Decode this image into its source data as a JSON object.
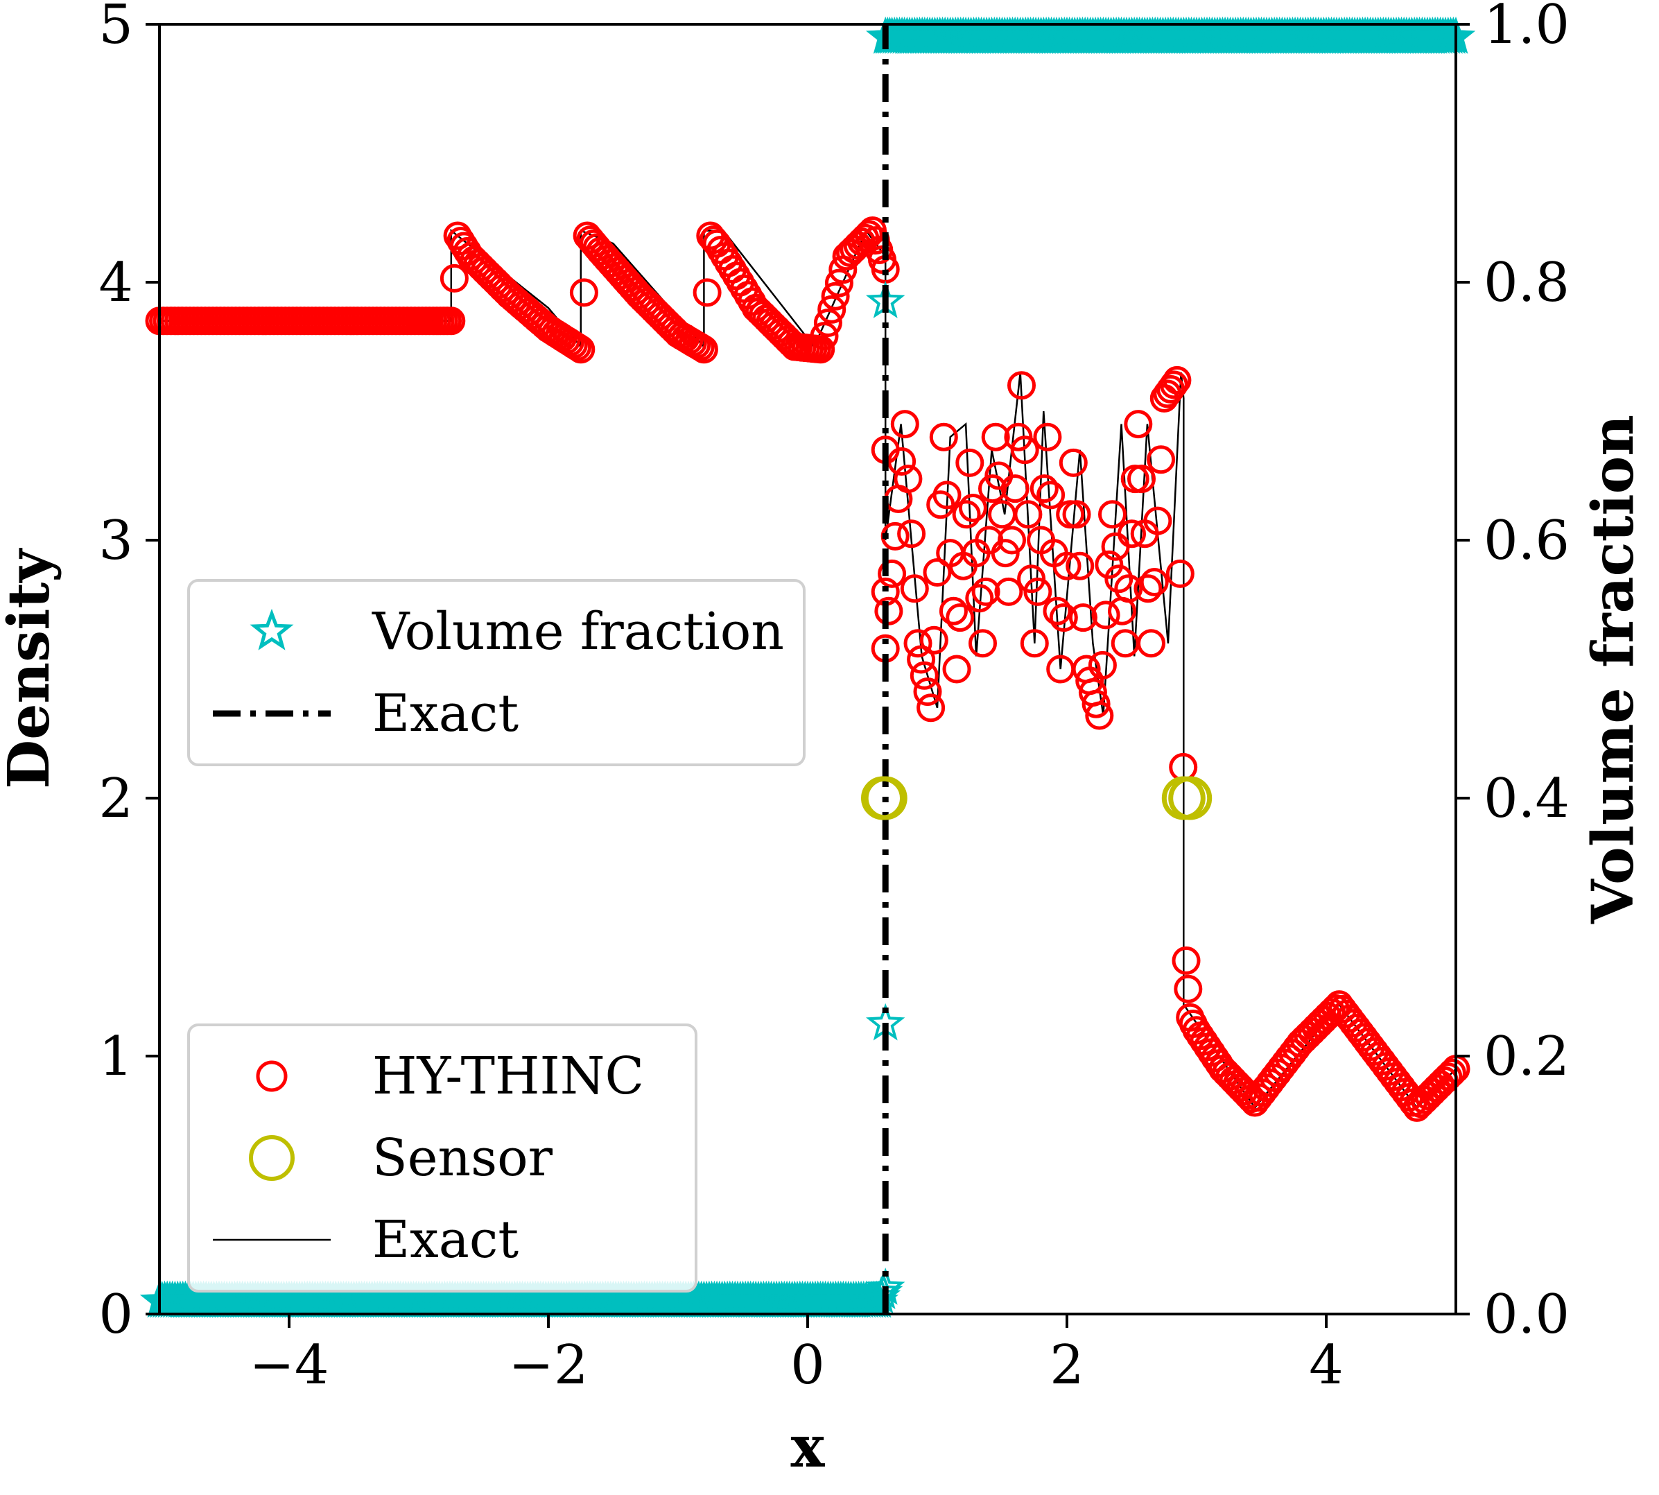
{
  "chart_data": {
    "type": "line",
    "title": "",
    "xlabel": "x",
    "ylabel": "Density",
    "y2label": "Volume fraction",
    "xlim": [
      -5,
      5
    ],
    "ylim": [
      0,
      5
    ],
    "y2lim": [
      0,
      1
    ],
    "x_ticks": [
      -4,
      -2,
      0,
      2,
      4
    ],
    "x_tick_labels": [
      "−4",
      "−2",
      "0",
      "2",
      "4"
    ],
    "y_ticks": [
      0,
      1,
      2,
      3,
      4,
      5
    ],
    "y_tick_labels": [
      "0",
      "1",
      "2",
      "3",
      "4",
      "5"
    ],
    "y2_ticks": [
      0,
      0.2,
      0.4,
      0.6,
      0.8,
      1.0
    ],
    "y2_tick_labels": [
      "0.0",
      "0.2",
      "0.4",
      "0.6",
      "0.8",
      "1.0"
    ],
    "grid": false,
    "colors": {
      "hy_thinc": "#ff0000",
      "sensor": "#bfbf00",
      "volume_fraction": "#00bfbf",
      "exact": "#000000"
    },
    "series": [
      {
        "name": "HY-THINC",
        "marker": "open-circle",
        "axis": "left",
        "x": [
          -5.0,
          -4.0,
          -3.0,
          -2.75,
          -2.7,
          -2.6,
          -2.3,
          -2.0,
          -1.75,
          -1.7,
          -1.6,
          -1.3,
          -1.0,
          -0.8,
          -0.75,
          -0.7,
          -0.4,
          -0.1,
          0.1,
          0.3,
          0.5,
          0.6,
          0.6,
          0.6,
          0.6,
          0.75,
          0.85,
          0.95,
          1.05,
          1.15,
          1.25,
          1.35,
          1.45,
          1.55,
          1.65,
          1.75,
          1.85,
          1.95,
          2.05,
          2.15,
          2.25,
          2.35,
          2.45,
          2.55,
          2.65,
          2.75,
          2.85,
          2.92,
          2.95,
          3.0,
          3.2,
          3.45,
          3.8,
          4.1,
          4.4,
          4.7,
          5.0
        ],
        "y": [
          3.85,
          3.85,
          3.85,
          3.85,
          4.18,
          4.1,
          3.95,
          3.82,
          3.74,
          4.18,
          4.12,
          3.95,
          3.8,
          3.74,
          4.18,
          4.15,
          3.9,
          3.75,
          3.74,
          4.1,
          4.2,
          4.05,
          3.35,
          2.8,
          2.58,
          3.45,
          2.6,
          2.35,
          3.4,
          2.5,
          3.3,
          2.6,
          3.4,
          2.8,
          3.6,
          2.6,
          3.4,
          2.5,
          3.3,
          2.5,
          2.32,
          3.1,
          2.6,
          3.45,
          2.6,
          3.55,
          3.62,
          1.37,
          1.15,
          1.1,
          0.95,
          0.82,
          1.05,
          1.2,
          1.0,
          0.8,
          0.95
        ]
      },
      {
        "name": "Sensor",
        "marker": "open-circle-large",
        "axis": "left",
        "x": [
          0.58,
          0.6,
          2.9,
          2.95
        ],
        "y": [
          2.0,
          2.0,
          2.0,
          2.0
        ]
      },
      {
        "name": "Volume fraction",
        "marker": "open-star",
        "axis": "right",
        "x": [
          -5.0,
          -4.0,
          -3.0,
          -2.0,
          -1.0,
          0.0,
          0.55,
          0.6,
          0.6,
          0.6,
          0.6,
          0.65,
          1.0,
          2.0,
          3.0,
          4.0,
          5.0
        ],
        "y": [
          0.01,
          0.01,
          0.01,
          0.01,
          0.01,
          0.01,
          0.01,
          0.02,
          0.225,
          0.785,
          0.99,
          0.99,
          0.99,
          0.99,
          0.99,
          0.99,
          0.99
        ]
      },
      {
        "name": "Exact",
        "style": "dash-dot",
        "axis": "right",
        "x": [
          0.6,
          0.6
        ],
        "y": [
          0.0,
          1.0
        ]
      },
      {
        "name": "Exact",
        "style": "thin-solid",
        "axis": "left",
        "x": [
          -5.0,
          -2.75,
          -2.75,
          -2.5,
          -2.0,
          -1.75,
          -1.75,
          -1.5,
          -0.8,
          -0.8,
          -0.65,
          0.05,
          0.45,
          0.6,
          0.6,
          0.72,
          0.88,
          1.0,
          1.1,
          1.22,
          1.3,
          1.42,
          1.52,
          1.64,
          1.75,
          1.82,
          1.95,
          2.1,
          2.2,
          2.28,
          2.42,
          2.52,
          2.62,
          2.78,
          2.88,
          2.9,
          2.9,
          3.45,
          4.1,
          4.7,
          5.0
        ],
        "y": [
          3.85,
          3.85,
          4.2,
          4.1,
          3.9,
          3.75,
          4.2,
          4.15,
          3.75,
          4.2,
          4.2,
          3.75,
          4.2,
          4.1,
          3.0,
          3.45,
          2.55,
          2.35,
          3.4,
          3.45,
          2.55,
          3.35,
          3.1,
          3.65,
          2.6,
          3.5,
          2.5,
          3.35,
          2.6,
          2.32,
          3.45,
          2.55,
          3.45,
          2.6,
          3.65,
          3.55,
          1.2,
          0.8,
          1.2,
          0.8,
          0.95
        ]
      }
    ],
    "legends": [
      {
        "location": "center-left",
        "entries": [
          {
            "label": "Volume fraction",
            "marker": "open-star"
          },
          {
            "label": "Exact",
            "style": "dash-dot"
          }
        ]
      },
      {
        "location": "lower-left",
        "entries": [
          {
            "label": "HY-THINC",
            "marker": "open-circle"
          },
          {
            "label": "Sensor",
            "marker": "open-circle-large"
          },
          {
            "label": "Exact",
            "style": "thin-solid"
          }
        ]
      }
    ]
  }
}
